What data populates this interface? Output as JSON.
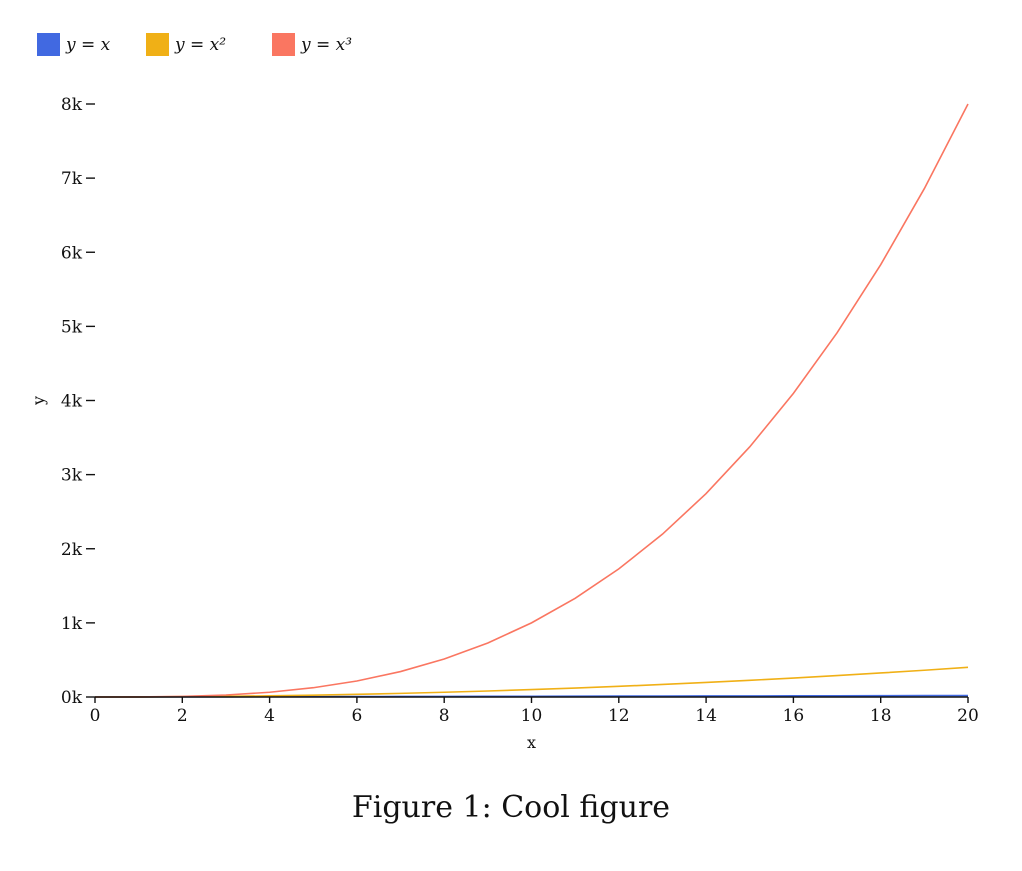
{
  "caption": "Figure 1: Cool figure",
  "chart_data": {
    "type": "line",
    "xlabel": "x",
    "ylabel": "y",
    "xlim": [
      0,
      20
    ],
    "ylim": [
      0,
      8000
    ],
    "x_ticks": [
      0,
      2,
      4,
      6,
      8,
      10,
      12,
      14,
      16,
      18,
      20
    ],
    "x_tick_labels": [
      "0",
      "2",
      "4",
      "6",
      "8",
      "10",
      "12",
      "14",
      "16",
      "18",
      "20"
    ],
    "y_ticks": [
      0,
      1000,
      2000,
      3000,
      4000,
      5000,
      6000,
      7000,
      8000
    ],
    "y_tick_labels": [
      "0k",
      "1k",
      "2k",
      "3k",
      "4k",
      "5k",
      "6k",
      "7k",
      "8k"
    ],
    "grid": false,
    "legend_position": "top-left",
    "x": [
      0,
      1,
      2,
      3,
      4,
      5,
      6,
      7,
      8,
      9,
      10,
      11,
      12,
      13,
      14,
      15,
      16,
      17,
      18,
      19,
      20
    ],
    "series": [
      {
        "name": "y = x",
        "color": "#4169e1",
        "values": [
          0,
          1,
          2,
          3,
          4,
          5,
          6,
          7,
          8,
          9,
          10,
          11,
          12,
          13,
          14,
          15,
          16,
          17,
          18,
          19,
          20
        ]
      },
      {
        "name": "y = x²",
        "color": "#f0b016",
        "values": [
          0,
          1,
          4,
          9,
          16,
          25,
          36,
          49,
          64,
          81,
          100,
          121,
          144,
          169,
          196,
          225,
          256,
          289,
          324,
          361,
          400
        ]
      },
      {
        "name": "y = x³",
        "color": "#fa7661",
        "values": [
          0,
          1,
          8,
          27,
          64,
          125,
          216,
          343,
          512,
          729,
          1000,
          1331,
          1728,
          2197,
          2744,
          3375,
          4096,
          4913,
          5832,
          6859,
          8000
        ]
      }
    ]
  }
}
